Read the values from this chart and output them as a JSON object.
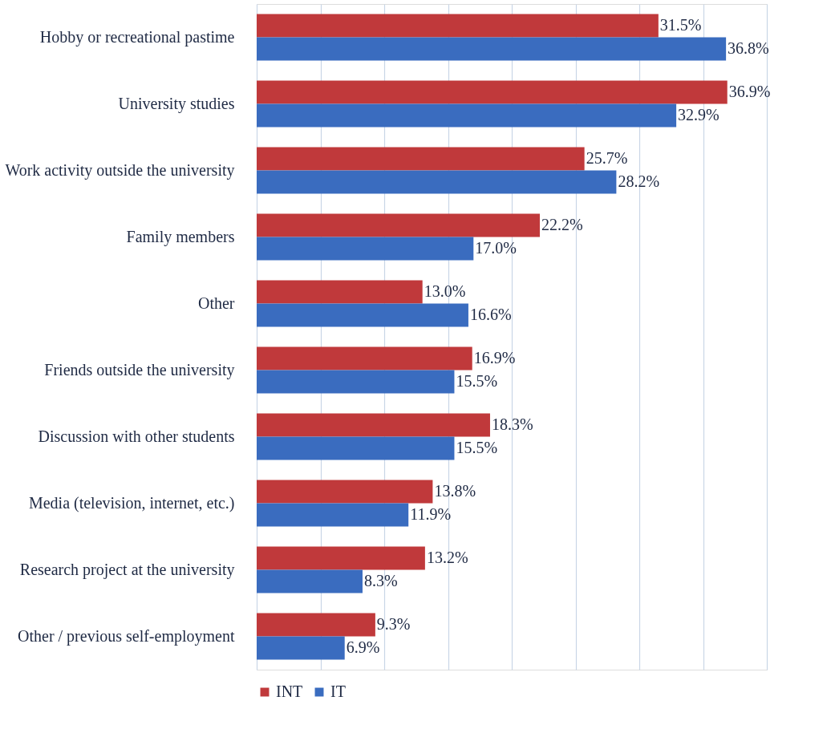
{
  "chart_data": {
    "type": "bar",
    "orientation": "horizontal",
    "categories": [
      "Hobby or recreational pastime",
      "University studies",
      "Work activity outside the university",
      "Family members",
      "Other",
      "Friends outside the university",
      "Discussion with other students",
      "Media (television, internet, etc.)",
      "Research project at the university",
      "Other / previous self-employment"
    ],
    "series": [
      {
        "name": "INT",
        "color": "#c0393b",
        "values": [
          31.5,
          36.9,
          25.7,
          22.2,
          13.0,
          16.9,
          18.3,
          13.8,
          13.2,
          9.3
        ],
        "value_labels": [
          "31.5%",
          "36.9%",
          "25.7%",
          "22.2%",
          "13.0%",
          "16.9%",
          "18.3%",
          "13.8%",
          "13.2%",
          "9.3%"
        ]
      },
      {
        "name": "IT",
        "color": "#3a6cbf",
        "values": [
          36.8,
          32.9,
          28.2,
          17.0,
          16.6,
          15.5,
          15.5,
          11.9,
          8.3,
          6.9
        ],
        "value_labels": [
          "36.8%",
          "32.9%",
          "28.2%",
          "17.0%",
          "16.6%",
          "15.5%",
          "15.5%",
          "11.9%",
          "8.3%",
          "6.9%"
        ]
      }
    ],
    "xlim": [
      0,
      40
    ],
    "xticks": [
      {
        "value": 0,
        "label": null
      },
      {
        "value": 5,
        "label": null
      },
      {
        "value": 10,
        "label": null
      },
      {
        "value": 15,
        "label": null
      },
      {
        "value": 20,
        "label": null
      },
      {
        "value": 25,
        "label": null
      },
      {
        "value": 30,
        "label": null
      },
      {
        "value": 35,
        "label": null
      },
      {
        "value": 40,
        "label": null
      }
    ],
    "grid": "x",
    "legend": "bottom",
    "tick_labels": "y"
  }
}
